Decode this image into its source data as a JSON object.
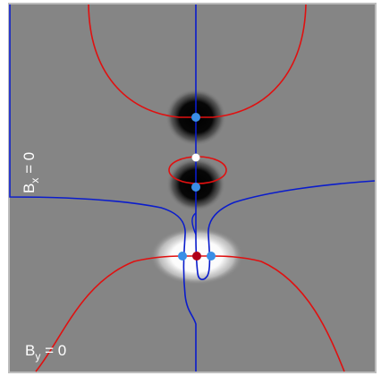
{
  "labels": {
    "bx_label": "B",
    "bx_sub": "x",
    "bx_rest": " = 0",
    "by_label": "B",
    "by_sub": "y",
    "by_rest": " = 0"
  },
  "colors": {
    "background_gray": "#858585",
    "border_gray": "#bdbdbd",
    "contour_red": "#e01010",
    "contour_blue": "#0a1ccc",
    "null_point_blue": "#3a8ee6",
    "null_point_red": "#b0001a",
    "null_point_white": "#ffffff",
    "blob_dark": "#000000",
    "blob_light": "#ffffff"
  },
  "null_points": [
    {
      "name": "blue-null-point-top",
      "type": "blue"
    },
    {
      "name": "white-null-point-middle",
      "type": "white"
    },
    {
      "name": "blue-null-point-middle",
      "type": "blue"
    },
    {
      "name": "blue-null-point-bottom-left",
      "type": "blue"
    },
    {
      "name": "red-null-point-bottom-center",
      "type": "red"
    },
    {
      "name": "blue-null-point-bottom-right",
      "type": "blue"
    }
  ]
}
